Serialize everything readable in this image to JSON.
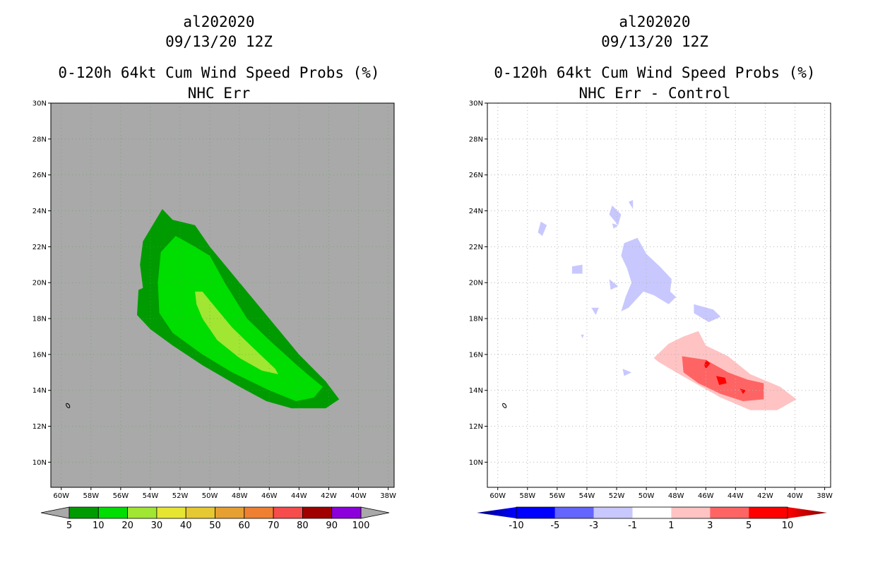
{
  "chart_data": [
    {
      "type": "filled-contour-map",
      "title": [
        "al202020",
        "09/13/20 12Z",
        "0-120h 64kt Cum Wind Speed Probs (%)",
        "NHC Err"
      ],
      "xlim": [
        -60.7,
        -37.6
      ],
      "ylim": [
        8.6,
        30
      ],
      "x_ticks": [
        -60,
        -58,
        -56,
        -54,
        -52,
        -50,
        -48,
        -46,
        -44,
        -42,
        -40,
        -38
      ],
      "x_tick_labels": [
        "60W",
        "58W",
        "56W",
        "54W",
        "52W",
        "50W",
        "48W",
        "46W",
        "44W",
        "42W",
        "40W",
        "38W"
      ],
      "y_ticks": [
        10,
        12,
        14,
        16,
        18,
        20,
        22,
        24,
        26,
        28,
        30
      ],
      "y_tick_labels": [
        "10N",
        "12N",
        "14N",
        "16N",
        "18N",
        "20N",
        "22N",
        "24N",
        "26N",
        "28N",
        "30N"
      ],
      "background_color": "#a9a9a9",
      "colorbar": {
        "levels": [
          5,
          10,
          20,
          30,
          40,
          50,
          60,
          70,
          80,
          90,
          100
        ],
        "labels": [
          "5",
          "10",
          "20",
          "30",
          "40",
          "50",
          "60",
          "70",
          "80",
          "90",
          "100"
        ],
        "colors": [
          "#a9a9a9",
          "#009b00",
          "#00dd00",
          "#a0e632",
          "#e6e632",
          "#e6c832",
          "#e6a032",
          "#ef8032",
          "#f64c4c",
          "#a00000",
          "#8c00dc",
          "#a9a9a9"
        ]
      },
      "contours": [
        {
          "level": 5,
          "color": "#009b00",
          "polygon": [
            [
              -54.5,
              22.3
            ],
            [
              -53.2,
              24.1
            ],
            [
              -52.5,
              23.5
            ],
            [
              -51.0,
              23.2
            ],
            [
              -50.0,
              22.0
            ],
            [
              -48.5,
              20.5
            ],
            [
              -46.0,
              18.0
            ],
            [
              -44.0,
              16.0
            ],
            [
              -42.2,
              14.5
            ],
            [
              -41.3,
              13.5
            ],
            [
              -42.2,
              13.0
            ],
            [
              -44.5,
              13.0
            ],
            [
              -46.2,
              13.4
            ],
            [
              -48.0,
              14.2
            ],
            [
              -50.5,
              15.4
            ],
            [
              -52.5,
              16.5
            ],
            [
              -54.0,
              17.4
            ],
            [
              -54.9,
              18.2
            ],
            [
              -54.8,
              19.6
            ],
            [
              -54.5,
              19.7
            ],
            [
              -54.7,
              21.0
            ]
          ]
        },
        {
          "level": 10,
          "color": "#00dd00",
          "polygon": [
            [
              -53.3,
              21.7
            ],
            [
              -52.3,
              22.6
            ],
            [
              -51.0,
              22.0
            ],
            [
              -50.0,
              21.5
            ],
            [
              -49.0,
              20.0
            ],
            [
              -47.5,
              18.0
            ],
            [
              -46.0,
              16.8
            ],
            [
              -44.0,
              15.3
            ],
            [
              -43.0,
              14.6
            ],
            [
              -42.4,
              14.2
            ],
            [
              -43.0,
              13.6
            ],
            [
              -44.2,
              13.4
            ],
            [
              -46.0,
              14.0
            ],
            [
              -48.5,
              15.0
            ],
            [
              -50.5,
              16.0
            ],
            [
              -52.5,
              17.2
            ],
            [
              -53.4,
              18.3
            ],
            [
              -53.5,
              20.0
            ]
          ]
        },
        {
          "level": 20,
          "color": "#a0e632",
          "polygon": [
            [
              -51.0,
              19.5
            ],
            [
              -50.5,
              19.5
            ],
            [
              -49.8,
              18.8
            ],
            [
              -48.5,
              17.5
            ],
            [
              -47.0,
              16.3
            ],
            [
              -45.6,
              15.2
            ],
            [
              -45.4,
              14.9
            ],
            [
              -46.5,
              15.1
            ],
            [
              -48.0,
              15.8
            ],
            [
              -49.5,
              16.8
            ],
            [
              -50.5,
              18.0
            ],
            [
              -50.9,
              18.8
            ]
          ]
        }
      ]
    },
    {
      "type": "filled-contour-map",
      "title": [
        "al202020",
        "09/13/20 12Z",
        "0-120h 64kt Cum Wind Speed Probs (%)",
        "NHC Err - Control"
      ],
      "xlim": [
        -60.7,
        -37.6
      ],
      "ylim": [
        8.6,
        30
      ],
      "x_ticks": [
        -60,
        -58,
        -56,
        -54,
        -52,
        -50,
        -48,
        -46,
        -44,
        -42,
        -40,
        -38
      ],
      "x_tick_labels": [
        "60W",
        "58W",
        "56W",
        "54W",
        "52W",
        "50W",
        "48W",
        "46W",
        "44W",
        "42W",
        "40W",
        "38W"
      ],
      "y_ticks": [
        10,
        12,
        14,
        16,
        18,
        20,
        22,
        24,
        26,
        28,
        30
      ],
      "y_tick_labels": [
        "10N",
        "12N",
        "14N",
        "16N",
        "18N",
        "20N",
        "22N",
        "24N",
        "26N",
        "28N",
        "30N"
      ],
      "background_color": "#ffffff",
      "grid": true,
      "colorbar": {
        "levels": [
          -10,
          -5,
          -3,
          -1,
          1,
          3,
          5,
          10
        ],
        "labels": [
          "-10",
          "-5",
          "-3",
          "-1",
          "1",
          "3",
          "5",
          "10"
        ],
        "colors": [
          "#000082",
          "#0000ff",
          "#6464ff",
          "#c8c8ff",
          "#ffffff",
          "#ffc3c3",
          "#ff6464",
          "#ff0000",
          "#820000"
        ]
      },
      "contours": [
        {
          "level": 1,
          "color": "#ffc3c3",
          "polygon": [
            [
              -49.5,
              15.8
            ],
            [
              -48.5,
              16.6
            ],
            [
              -47.5,
              17.0
            ],
            [
              -46.5,
              17.3
            ],
            [
              -46.0,
              16.5
            ],
            [
              -44.5,
              15.9
            ],
            [
              -43.0,
              14.9
            ],
            [
              -41.0,
              14.2
            ],
            [
              -39.9,
              13.5
            ],
            [
              -41.2,
              12.9
            ],
            [
              -43.0,
              12.9
            ],
            [
              -45.0,
              13.6
            ],
            [
              -46.5,
              14.3
            ],
            [
              -48.0,
              15.0
            ],
            [
              -49.2,
              15.6
            ]
          ]
        },
        {
          "level": 3,
          "color": "#ff6464",
          "polygon": [
            [
              -47.6,
              15.9
            ],
            [
              -46.0,
              15.7
            ],
            [
              -44.5,
              15.0
            ],
            [
              -43.2,
              14.6
            ],
            [
              -42.1,
              14.4
            ],
            [
              -42.1,
              13.5
            ],
            [
              -43.5,
              13.4
            ],
            [
              -45.0,
              13.8
            ],
            [
              -46.5,
              14.4
            ],
            [
              -47.5,
              15.0
            ]
          ]
        },
        {
          "level": 5,
          "color": "#ff0000",
          "polygon": [
            [
              -45.3,
              14.8
            ],
            [
              -44.7,
              14.7
            ],
            [
              -44.6,
              14.4
            ],
            [
              -45.1,
              14.3
            ]
          ]
        },
        {
          "level": 5,
          "color": "#ff0000",
          "polygon": [
            [
              -46.0,
              15.7
            ],
            [
              -45.7,
              15.5
            ],
            [
              -46.0,
              15.2
            ],
            [
              -46.1,
              15.4
            ]
          ]
        },
        {
          "level": 5,
          "color": "#ff0000",
          "polygon": [
            [
              -43.7,
              14.1
            ],
            [
              -43.3,
              14.0
            ],
            [
              -43.5,
              13.8
            ]
          ]
        },
        {
          "level": -1,
          "color": "#c8c8ff",
          "polygon": [
            [
              -51.5,
              22.2
            ],
            [
              -50.6,
              22.5
            ],
            [
              -50.0,
              21.6
            ],
            [
              -49.1,
              20.9
            ],
            [
              -48.3,
              20.2
            ],
            [
              -48.4,
              19.5
            ],
            [
              -48.0,
              19.2
            ],
            [
              -48.5,
              18.8
            ],
            [
              -49.5,
              19.3
            ],
            [
              -50.2,
              19.5
            ],
            [
              -51.2,
              18.6
            ],
            [
              -51.7,
              18.4
            ],
            [
              -51.4,
              19.2
            ],
            [
              -51.0,
              20.0
            ],
            [
              -51.3,
              20.8
            ],
            [
              -51.7,
              21.5
            ]
          ]
        },
        {
          "level": -1,
          "color": "#c8c8ff",
          "polygon": [
            [
              -52.3,
              24.3
            ],
            [
              -51.7,
              23.8
            ],
            [
              -51.9,
              23.2
            ],
            [
              -52.5,
              23.8
            ]
          ]
        },
        {
          "level": -1,
          "color": "#c8c8ff",
          "polygon": [
            [
              -51.2,
              24.5
            ],
            [
              -50.9,
              24.6
            ],
            [
              -50.9,
              24.1
            ]
          ]
        },
        {
          "level": -1,
          "color": "#c8c8ff",
          "polygon": [
            [
              -57.1,
              23.4
            ],
            [
              -56.7,
              23.2
            ],
            [
              -57.0,
              22.6
            ],
            [
              -57.3,
              22.8
            ]
          ]
        },
        {
          "level": -1,
          "color": "#c8c8ff",
          "polygon": [
            [
              -55.0,
              20.9
            ],
            [
              -54.3,
              21.0
            ],
            [
              -54.3,
              20.5
            ],
            [
              -55.0,
              20.5
            ]
          ]
        },
        {
          "level": -1,
          "color": "#c8c8ff",
          "polygon": [
            [
              -52.5,
              20.2
            ],
            [
              -51.9,
              19.8
            ],
            [
              -52.4,
              19.6
            ]
          ]
        },
        {
          "level": -1,
          "color": "#c8c8ff",
          "polygon": [
            [
              -52.3,
              23.3
            ],
            [
              -51.9,
              23.2
            ],
            [
              -52.2,
              23.0
            ]
          ]
        },
        {
          "level": -1,
          "color": "#c8c8ff",
          "polygon": [
            [
              -46.8,
              18.8
            ],
            [
              -45.5,
              18.5
            ],
            [
              -45.0,
              18.1
            ],
            [
              -45.8,
              17.8
            ],
            [
              -46.8,
              18.3
            ]
          ]
        },
        {
          "level": -1,
          "color": "#c8c8ff",
          "polygon": [
            [
              -53.7,
              18.6
            ],
            [
              -53.2,
              18.6
            ],
            [
              -53.4,
              18.2
            ]
          ]
        },
        {
          "level": -1,
          "color": "#c8c8ff",
          "polygon": [
            [
              -51.6,
              15.2
            ],
            [
              -51.0,
              15.0
            ],
            [
              -51.5,
              14.8
            ]
          ]
        },
        {
          "level": -1,
          "color": "#c8c8ff",
          "polygon": [
            [
              -54.4,
              17.1
            ],
            [
              -54.2,
              17.1
            ],
            [
              -54.3,
              16.9
            ]
          ]
        }
      ]
    }
  ]
}
